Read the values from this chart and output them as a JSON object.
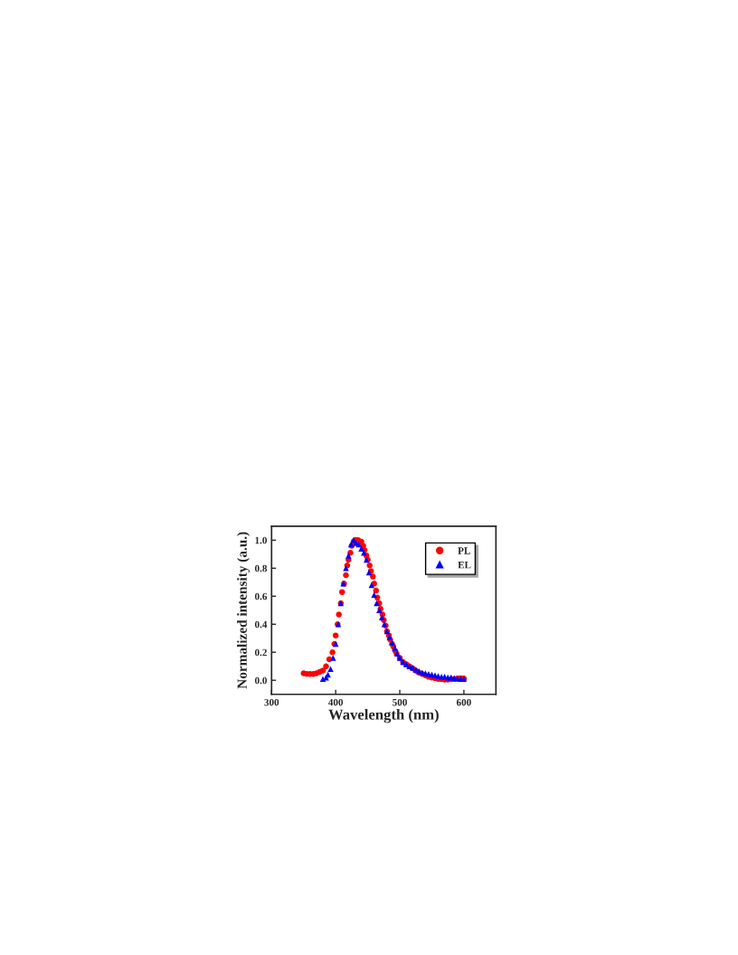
{
  "chart_data": {
    "type": "scatter",
    "xlabel": "Wavelength (nm)",
    "ylabel": "Normalized intensity (a.u.)",
    "xlim": [
      300,
      650
    ],
    "xticks": [
      300,
      400,
      500,
      600
    ],
    "ylim": [
      -0.1,
      1.1
    ],
    "yticks": [
      {
        "value": 0,
        "label": "0.0"
      },
      {
        "value": 0.2,
        "label": "0.2"
      },
      {
        "value": 0.4,
        "label": "0.4"
      },
      {
        "value": 0.6,
        "label": "0.6"
      },
      {
        "value": 0.8,
        "label": "0.8"
      },
      {
        "value": 1,
        "label": "1.0"
      }
    ],
    "grid": false,
    "legend": "top right",
    "series": [
      {
        "name": "PL",
        "color": "#ff0000",
        "marker": "circle",
        "x": [
          350,
          355,
          360,
          365,
          370,
          375,
          380,
          385,
          390,
          395,
          398,
          400,
          403,
          405,
          408,
          410,
          413,
          416,
          418,
          420,
          423,
          425,
          428,
          430,
          433,
          435,
          438,
          440,
          443,
          445,
          448,
          450,
          453,
          455,
          458,
          460,
          463,
          465,
          468,
          470,
          473,
          475,
          478,
          480,
          483,
          485,
          488,
          490,
          493,
          495,
          500,
          505,
          510,
          515,
          520,
          525,
          530,
          535,
          540,
          545,
          550,
          555,
          560,
          565,
          570,
          575,
          580,
          585,
          590,
          595,
          600
        ],
        "values": [
          0.05,
          0.045,
          0.045,
          0.045,
          0.05,
          0.06,
          0.07,
          0.1,
          0.15,
          0.2,
          0.26,
          0.32,
          0.4,
          0.47,
          0.55,
          0.63,
          0.69,
          0.75,
          0.82,
          0.86,
          0.91,
          0.96,
          0.99,
          1.0,
          1.0,
          1.0,
          0.99,
          0.99,
          0.96,
          0.93,
          0.89,
          0.86,
          0.82,
          0.78,
          0.74,
          0.69,
          0.64,
          0.59,
          0.55,
          0.51,
          0.47,
          0.43,
          0.39,
          0.35,
          0.32,
          0.29,
          0.26,
          0.24,
          0.21,
          0.19,
          0.16,
          0.13,
          0.115,
          0.1,
          0.085,
          0.07,
          0.055,
          0.045,
          0.035,
          0.025,
          0.02,
          0.015,
          0.01,
          0.008,
          0.005,
          0.005,
          0.008,
          0.01,
          0.012,
          0.015,
          0.012
        ]
      },
      {
        "name": "EL",
        "color": "#0000ff",
        "marker": "triangle",
        "x": [
          380,
          385,
          388,
          392,
          396,
          400,
          404,
          408,
          412,
          416,
          420,
          424,
          428,
          432,
          436,
          440,
          444,
          448,
          452,
          456,
          460,
          464,
          468,
          472,
          476,
          480,
          484,
          488,
          492,
          496,
          500,
          505,
          510,
          515,
          520,
          525,
          530,
          535,
          540,
          545,
          550,
          555,
          560,
          565,
          570,
          575,
          580,
          585,
          590,
          595,
          600
        ],
        "values": [
          0.01,
          0.02,
          0.04,
          0.08,
          0.16,
          0.26,
          0.4,
          0.55,
          0.69,
          0.8,
          0.89,
          0.97,
          1.0,
          0.98,
          0.97,
          0.94,
          0.91,
          0.86,
          0.77,
          0.68,
          0.61,
          0.55,
          0.5,
          0.45,
          0.4,
          0.35,
          0.31,
          0.27,
          0.23,
          0.19,
          0.16,
          0.13,
          0.115,
          0.1,
          0.09,
          0.075,
          0.065,
          0.055,
          0.05,
          0.045,
          0.04,
          0.035,
          0.03,
          0.025,
          0.025,
          0.02,
          0.02,
          0.015,
          0.012,
          0.01,
          0.01
        ]
      }
    ]
  }
}
